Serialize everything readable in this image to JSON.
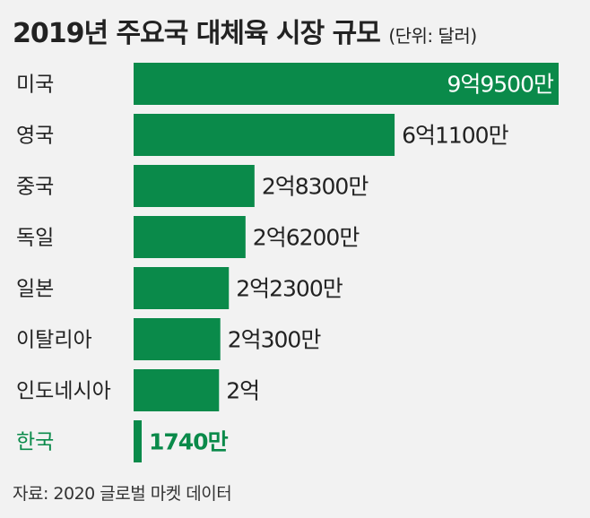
{
  "title": "2019년 주요국 대체육 시장 규모",
  "unit": "(단위: 달러)",
  "source": "자료: 2020 글로벌 마켓 데이터",
  "colors": {
    "bar": "#0a8a4a",
    "highlight_text": "#0a8a4a",
    "label_inside": "#ffffff",
    "label_outside": "#222222"
  },
  "chart_data": {
    "type": "bar",
    "orientation": "horizontal",
    "categories": [
      "미국",
      "영국",
      "중국",
      "독일",
      "일본",
      "이탈리아",
      "인도네시아",
      "한국"
    ],
    "values": [
      995000000,
      611000000,
      283000000,
      262000000,
      223000000,
      203000000,
      200000000,
      17400000
    ],
    "value_labels": [
      "9억9500만",
      "6억1100만",
      "2억8300만",
      "2억6200만",
      "2억2300만",
      "2억300만",
      "2억",
      "1740만"
    ],
    "highlight": "한국",
    "grid": false
  }
}
